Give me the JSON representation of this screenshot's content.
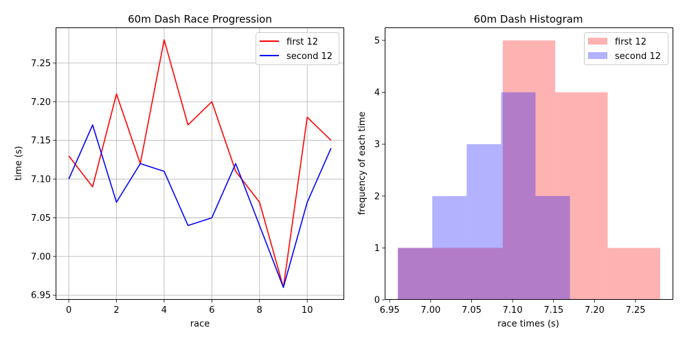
{
  "chart_data": [
    {
      "type": "line",
      "title": "60m Dash Race Progression",
      "xlabel": "race",
      "ylabel": "time (s)",
      "xlim": [
        -0.55,
        11.55
      ],
      "ylim": [
        6.944,
        7.296
      ],
      "xticks": [
        0,
        2,
        4,
        6,
        8,
        10
      ],
      "xtick_labels": [
        "0",
        "2",
        "4",
        "6",
        "8",
        "10"
      ],
      "yticks": [
        6.95,
        7.0,
        7.05,
        7.1,
        7.15,
        7.2,
        7.25
      ],
      "ytick_labels": [
        "6.95",
        "7.00",
        "7.05",
        "7.10",
        "7.15",
        "7.20",
        "7.25"
      ],
      "grid": true,
      "legend_position": "top-right",
      "x": [
        0,
        1,
        2,
        3,
        4,
        5,
        6,
        7,
        8,
        9,
        10,
        11
      ],
      "series": [
        {
          "name": "first 12",
          "color": "#ff0000",
          "values": [
            7.13,
            7.09,
            7.21,
            7.12,
            7.28,
            7.17,
            7.2,
            7.11,
            7.07,
            6.96,
            7.18,
            7.15
          ]
        },
        {
          "name": "second 12",
          "color": "#0000ff",
          "values": [
            7.1,
            7.17,
            7.07,
            7.12,
            7.11,
            7.04,
            7.05,
            7.12,
            7.04,
            6.96,
            7.07,
            7.14
          ]
        }
      ]
    },
    {
      "type": "bar",
      "title": "60m Dash Histogram",
      "xlabel": "race times (s)",
      "ylabel": "frequency of each time",
      "xlim": [
        6.944,
        7.296
      ],
      "ylim": [
        0,
        5.25
      ],
      "xticks": [
        6.95,
        7.0,
        7.05,
        7.1,
        7.15,
        7.2,
        7.25
      ],
      "xtick_labels": [
        "6.95",
        "7.00",
        "7.05",
        "7.10",
        "7.15",
        "7.20",
        "7.25"
      ],
      "yticks": [
        0,
        1,
        2,
        3,
        4,
        5
      ],
      "ytick_labels": [
        "0",
        "1",
        "2",
        "3",
        "4",
        "5"
      ],
      "grid": false,
      "legend_position": "top-right",
      "series": [
        {
          "name": "first 12",
          "color": "#ff0000",
          "opacity": 0.3,
          "bins": [
            6.96,
            7.024,
            7.088,
            7.152,
            7.216,
            7.28
          ],
          "values": [
            1,
            1,
            5,
            4,
            1
          ]
        },
        {
          "name": "second 12",
          "color": "#0000ff",
          "opacity": 0.3,
          "bins": [
            6.96,
            7.002,
            7.044,
            7.086,
            7.128,
            7.17
          ],
          "values": [
            1,
            2,
            3,
            4,
            2
          ]
        }
      ]
    }
  ]
}
